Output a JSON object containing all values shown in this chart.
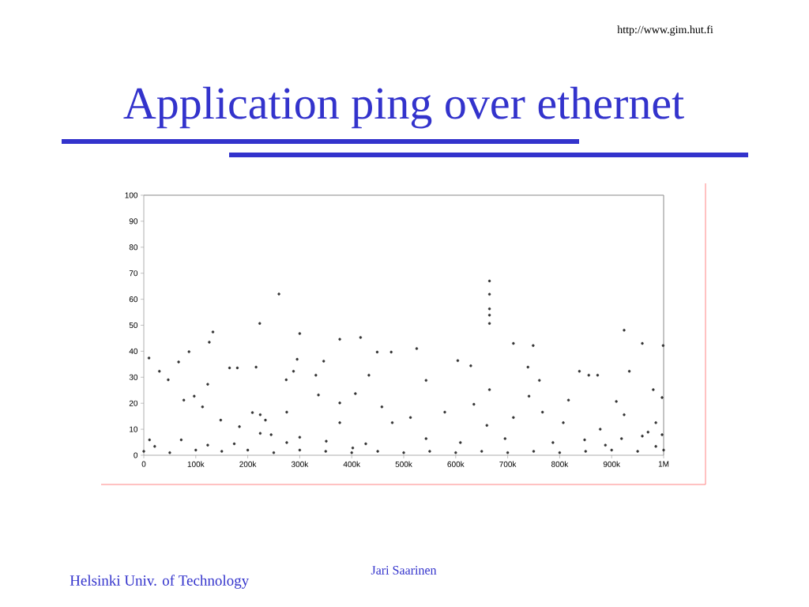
{
  "chart_data": {
    "type": "scatter",
    "title": "Application ping over ethernet",
    "annotations": [
      "http://www.gim.hut.fi",
      "Helsinki Univ. of Technology",
      "Jari Saarinen"
    ],
    "grid": false,
    "xlim": [
      0,
      1000000
    ],
    "ylim": [
      0,
      100
    ],
    "xticks": [
      0,
      {
        "value": 100000,
        "label": "100k"
      },
      {
        "value": 200000,
        "label": "200k"
      },
      {
        "value": 300000,
        "label": "300k"
      },
      {
        "value": 400000,
        "label": "400k"
      },
      {
        "value": 500000,
        "label": "500k"
      },
      {
        "value": 600000,
        "label": "600k"
      },
      {
        "value": 700000,
        "label": "700k"
      },
      {
        "value": 800000,
        "label": "800k"
      },
      {
        "value": 900000,
        "label": "900k"
      },
      {
        "value": 1000000,
        "label": "1M"
      }
    ],
    "yticks": [
      0,
      10,
      20,
      30,
      40,
      50,
      60,
      70,
      80,
      90,
      100
    ],
    "series": [
      {
        "color": "#333333",
        "x": [
          260000,
          223000,
          133000,
          126000,
          87000,
          10000,
          67000,
          30000,
          47000,
          165000,
          180000,
          216000,
          300000,
          417000,
          377000,
          346000,
          274000,
          288000,
          331000,
          295000,
          449000,
          476000,
          97000,
          77000,
          123000,
          113000,
          209000,
          224000,
          234000,
          148000,
          184000,
          275000,
          336000,
          377000,
          407000,
          433000,
          458000,
          478000,
          377000,
          11000,
          224000,
          245000,
          300000,
          72000,
          351000,
          427000,
          21000,
          123000,
          174000,
          275000,
          402000,
          665000,
          665000,
          665000,
          665000,
          665000,
          924000,
          959000,
          999000,
          711000,
          749000,
          525000,
          604000,
          629000,
          739000,
          838000,
          856000,
          873000,
          934000,
          543000,
          665000,
          741000,
          761000,
          817000,
          909000,
          980000,
          997000,
          635000,
          579000,
          711000,
          767000,
          924000,
          985000,
          513000,
          660000,
          807000,
          878000,
          970000,
          997000,
          543000,
          695000,
          848000,
          919000,
          959000,
          609000,
          787000,
          888000,
          985000,
          0,
          50000,
          100000,
          150000,
          200000,
          250000,
          300000,
          350000,
          400000,
          450000,
          500000,
          550000,
          600000,
          650000,
          700000,
          750000,
          800000,
          850000,
          900000,
          950000,
          1000000
        ],
        "values": [
          62,
          50.7,
          47.4,
          43.5,
          39.8,
          37.4,
          35.9,
          32.3,
          29,
          33.6,
          33.6,
          33.9,
          46.8,
          45.3,
          44.6,
          36.2,
          29,
          32.3,
          30.8,
          36.9,
          39.7,
          39.7,
          22.7,
          21.2,
          27.3,
          18.6,
          16.4,
          15.6,
          13.5,
          13.5,
          11,
          16.6,
          23.2,
          20.1,
          23.7,
          30.8,
          18.6,
          12.5,
          12.5,
          5.9,
          8.4,
          7.9,
          6.9,
          5.9,
          5.4,
          4.4,
          3.4,
          3.9,
          4.4,
          4.9,
          2.8,
          67,
          61.9,
          56.3,
          53.9,
          50.7,
          48.1,
          43,
          42.2,
          43,
          42.2,
          41,
          36.4,
          34.4,
          33.9,
          32.3,
          30.8,
          30.8,
          32.3,
          28.8,
          25.2,
          22.7,
          28.8,
          21.2,
          20.7,
          25.2,
          22.2,
          19.6,
          16.6,
          14.5,
          16.6,
          15.6,
          12.5,
          14.5,
          11.5,
          12.5,
          10,
          8.9,
          7.9,
          6.4,
          6.4,
          5.9,
          6.4,
          7.4,
          4.9,
          4.9,
          3.9,
          3.4,
          1.5,
          1,
          2,
          1.5,
          2,
          1,
          2,
          1.5,
          1,
          1.5,
          1,
          1.5,
          1,
          1.5,
          1,
          1.5,
          1,
          1.5,
          2,
          1.5,
          2
        ]
      }
    ]
  }
}
